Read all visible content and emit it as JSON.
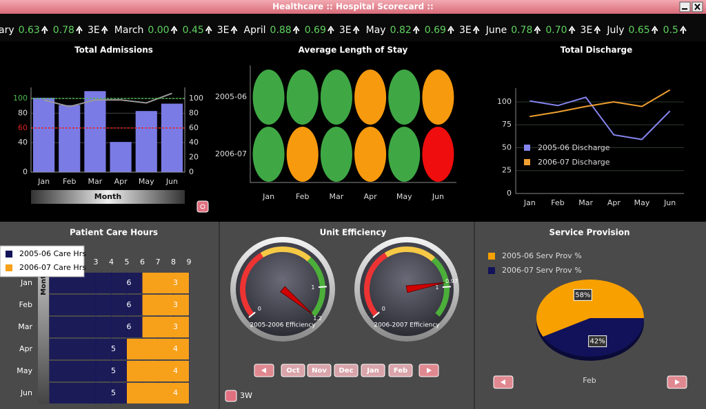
{
  "window": {
    "title": "Healthcare :: Hospital Scorecard ::"
  },
  "ticker": [
    {
      "label": "ary",
      "values": [
        "0.63",
        "0.78"
      ],
      "code": "3E"
    },
    {
      "label": "March",
      "values": [
        "0.00",
        "0.45"
      ],
      "code": "3E"
    },
    {
      "label": "April",
      "values": [
        "0.88",
        "0.69"
      ],
      "code": "3E"
    },
    {
      "label": "May",
      "values": [
        "0.82",
        "0.69"
      ],
      "code": "3E"
    },
    {
      "label": "June",
      "values": [
        "0.78",
        "0.70"
      ],
      "code": "3E"
    },
    {
      "label": "July",
      "values": [
        "0.65",
        "0.5"
      ]
    }
  ],
  "chart_data": [
    {
      "type": "bar",
      "title": "Total Admissions",
      "categories": [
        "Jan",
        "Feb",
        "Mar",
        "Apr",
        "May",
        "Jun"
      ],
      "xlabel": "Month",
      "ylim": [
        0,
        115
      ],
      "yticks": [
        0,
        40,
        60,
        80,
        100
      ],
      "y2lim": [
        0,
        115
      ],
      "y2ticks": [
        0,
        20,
        40,
        60,
        80,
        100
      ],
      "grid": true,
      "thresholds": [
        {
          "value": 100,
          "color": "#4fb84f"
        },
        {
          "value": 60,
          "color": "#e02020"
        }
      ],
      "series": [
        {
          "type": "bar",
          "color": "#7b7be6",
          "values": [
            101,
            91,
            110,
            41,
            83,
            93
          ]
        },
        {
          "type": "line",
          "axis": "y2",
          "color": "#9a9a9a",
          "values": [
            98,
            89,
            98,
            98,
            94,
            107
          ]
        }
      ]
    },
    {
      "type": "status-grid",
      "title": "Average Length of Stay",
      "categories": [
        "Jan",
        "Feb",
        "Mar",
        "Apr",
        "May",
        "Jun"
      ],
      "rows": [
        "2005-06",
        "2006-07"
      ],
      "colors": [
        [
          "#3fa845",
          "#3fa845",
          "#3fa845",
          "#f79a0e",
          "#3fa845",
          "#f79a0e"
        ],
        [
          "#3fa845",
          "#f79a0e",
          "#3fa845",
          "#f79a0e",
          "#3fa845",
          "#f00d0d"
        ]
      ]
    },
    {
      "type": "line",
      "title": "Total Discharge",
      "categories": [
        "Jan",
        "Feb",
        "Mar",
        "Apr",
        "May",
        "Jun"
      ],
      "ylim": [
        0,
        115
      ],
      "yticks": [
        0,
        25,
        50,
        75,
        100
      ],
      "grid": true,
      "legend": "center-left",
      "series": [
        {
          "name": "2005-06 Discharge",
          "color": "#8585ee",
          "values": [
            101,
            96,
            105,
            64,
            59,
            90
          ]
        },
        {
          "name": "2006-07 Discharge",
          "color": "#f0a030",
          "values": [
            84,
            89,
            95,
            100,
            95,
            113
          ]
        }
      ]
    },
    {
      "type": "stacked-barh",
      "title": "Patient Care Hours",
      "ylabel": "Month",
      "categories": [
        "Jan",
        "Feb",
        "Mar",
        "Apr",
        "May",
        "Jun"
      ],
      "xlim": [
        0,
        9
      ],
      "xticks": [
        3,
        4,
        5,
        6,
        7,
        8,
        9
      ],
      "legend": "top-left",
      "series": [
        {
          "name": "2005-06 Care Hrs",
          "color": "#14145a",
          "values": [
            6,
            6,
            6,
            5,
            5,
            5
          ]
        },
        {
          "name": "2006-07 Care Hrs",
          "color": "#f7a01a",
          "values": [
            3,
            3,
            3,
            4,
            4,
            4
          ]
        }
      ]
    },
    {
      "type": "gauge",
      "title": "Unit Efficiency",
      "lim": [
        0,
        1.2
      ],
      "ticks": [
        0,
        1
      ],
      "gauges": [
        {
          "name": "2005-2006 Efficiency",
          "value": 1.2
        },
        {
          "name": "2006-2007 Efficiency",
          "value": 0.97
        }
      ]
    },
    {
      "type": "pie",
      "title": "Service Provision",
      "categories": [
        "2005-06 Serv Prov %",
        "2006-07 Serv Prov %"
      ],
      "values": [
        58,
        42
      ],
      "value_labels": [
        "58%",
        "42%"
      ],
      "colors": [
        "#f7a000",
        "#12125a"
      ]
    }
  ],
  "controls": {
    "unit_efficiency": {
      "months": [
        "Oct",
        "Nov",
        "Dec",
        "Jan",
        "Feb"
      ],
      "status": "3W"
    },
    "service_provision": {
      "month": "Feb"
    }
  }
}
